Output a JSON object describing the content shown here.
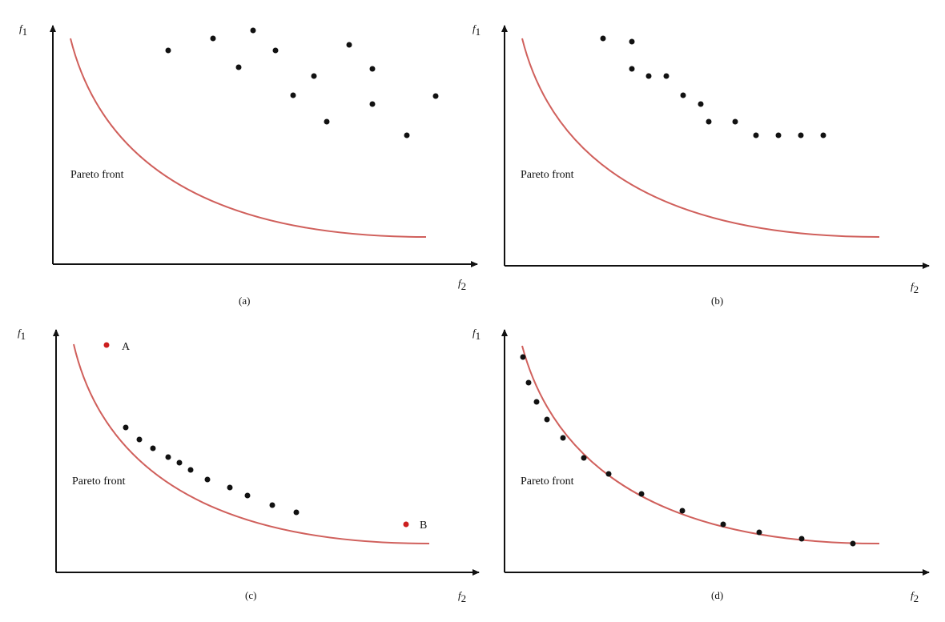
{
  "colors": {
    "front": "#d0605c",
    "point": "#111111",
    "special_point": "#cc1f1f",
    "axis": "#111111"
  },
  "panels": [
    {
      "caption": "(a)",
      "front_label": "Pareto front",
      "y_axis": {
        "letter": "f",
        "sub": "1"
      },
      "x_axis": {
        "letter": "f",
        "sub": "2"
      },
      "solution_points": "scattered, far from front",
      "special_points": []
    },
    {
      "caption": "(b)",
      "front_label": "Pareto front",
      "y_axis": {
        "letter": "f",
        "sub": "1"
      },
      "x_axis": {
        "letter": "f",
        "sub": "2"
      },
      "solution_points": "converging toward front",
      "special_points": []
    },
    {
      "caption": "(c)",
      "front_label": "Pareto front",
      "y_axis": {
        "letter": "f",
        "sub": "1"
      },
      "x_axis": {
        "letter": "f",
        "sub": "2"
      },
      "solution_points": "near front",
      "special_points": [
        {
          "label": "A"
        },
        {
          "label": "B"
        }
      ]
    },
    {
      "caption": "(d)",
      "front_label": "Pareto front",
      "y_axis": {
        "letter": "f",
        "sub": "1"
      },
      "x_axis": {
        "letter": "f",
        "sub": "2"
      },
      "solution_points": "on front",
      "special_points": []
    }
  ]
}
